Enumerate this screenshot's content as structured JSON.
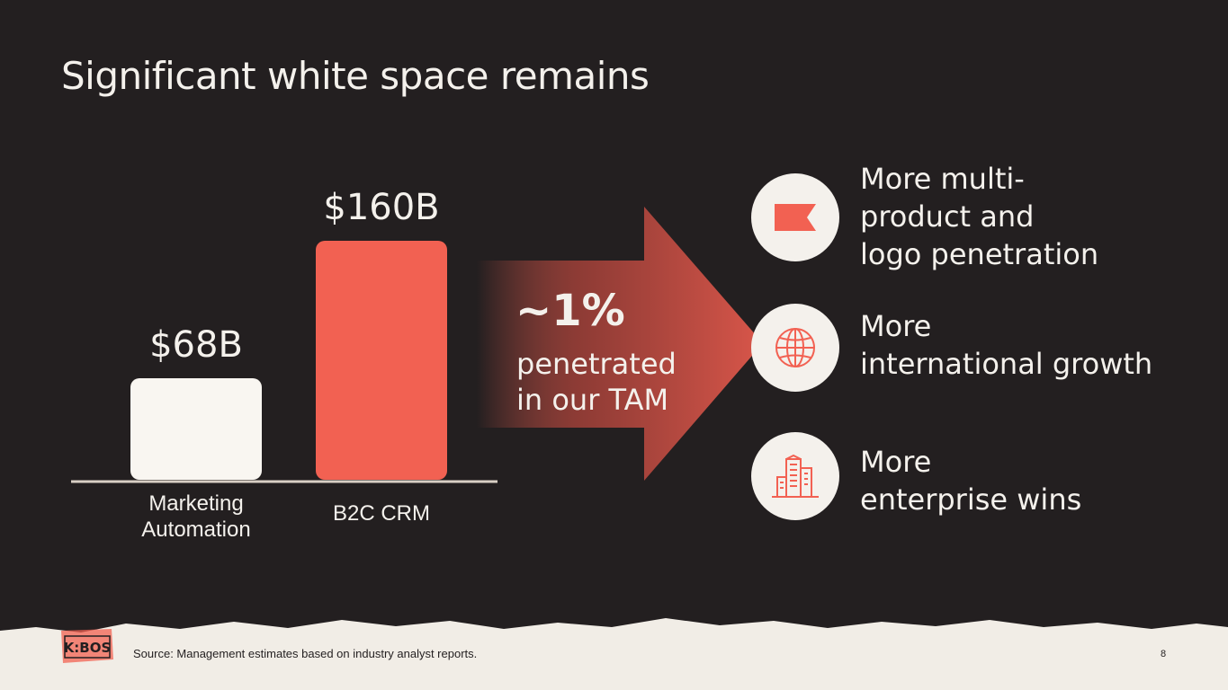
{
  "title": "Significant white space remains",
  "chart_data": {
    "type": "bar",
    "categories": [
      "Marketing Automation",
      "B2C CRM"
    ],
    "values": [
      68,
      160
    ],
    "value_labels": [
      "$68B",
      "$160B"
    ],
    "title": "",
    "xlabel": "",
    "ylabel": "",
    "colors": [
      "#f9f6f1",
      "#f26152"
    ],
    "grid": false
  },
  "category_lines": [
    [
      "Marketing",
      "Automation"
    ],
    [
      "B2C CRM"
    ]
  ],
  "callout": {
    "big": "~1%",
    "line1": "penetrated",
    "line2": "in our TAM"
  },
  "items": [
    {
      "icon": "flag-icon",
      "lines": [
        "More multi-",
        "product and",
        "logo penetration"
      ]
    },
    {
      "icon": "globe-icon",
      "lines": [
        "More",
        "international growth"
      ]
    },
    {
      "icon": "buildings-icon",
      "lines": [
        "More",
        "enterprise wins"
      ]
    }
  ],
  "footer": {
    "source": "Source: Management estimates based on industry analyst reports.",
    "page": "8",
    "logo_text": "K:BOS"
  },
  "colors": {
    "background": "#231f20",
    "accent": "#f26152",
    "light": "#f4f1ec"
  }
}
